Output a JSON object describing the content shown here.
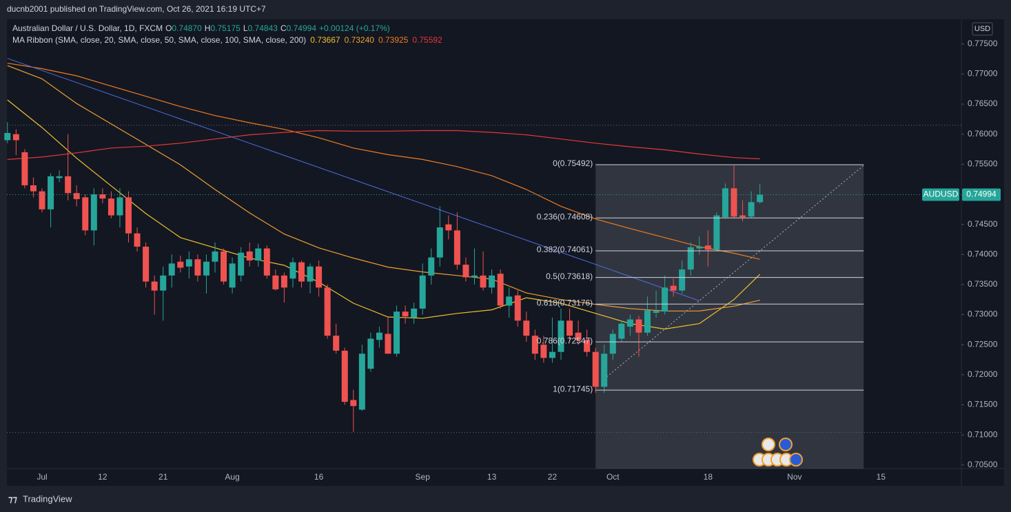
{
  "header": "ducnb2001 published on TradingView.com, Oct 26, 2021 16:19 UTC+7",
  "footer": "TradingView",
  "chart_data": {
    "type": "candlestick",
    "symbol": "Australian Dollar / U.S. Dollar, 1D, FXCM",
    "ohlc_legend": [
      {
        "key": "O",
        "value": 0.7487,
        "label": "0.74870"
      },
      {
        "key": "H",
        "value": 0.75175,
        "label": "0.75175"
      },
      {
        "key": "L",
        "value": 0.74843,
        "label": "0.74843"
      },
      {
        "key": "C",
        "value": 0.74994,
        "label": "0.74994"
      }
    ],
    "change": "+0.00124 (+0.17%)",
    "ma_legend": "MA Ribbon (SMA, close, 20, SMA, close, 50, SMA, close, 100, SMA, close, 200)",
    "currency": "USD",
    "price_tag": {
      "symbol": "AUDUSD",
      "value": 0.74994,
      "label": "0.74994"
    },
    "categories": [
      null,
      null,
      null,
      null,
      "Jul",
      null,
      null,
      null,
      null,
      null,
      null,
      "12",
      null,
      null,
      null,
      null,
      null,
      null,
      "21",
      null,
      null,
      null,
      null,
      null,
      null,
      null,
      "Aug",
      null,
      null,
      null,
      null,
      null,
      null,
      null,
      null,
      null,
      "16",
      null,
      null,
      null,
      null,
      null,
      null,
      null,
      null,
      null,
      null,
      null,
      "Sep",
      null,
      null,
      null,
      null,
      null,
      null,
      null,
      "13",
      null,
      null,
      null,
      null,
      null,
      null,
      "22",
      null,
      null,
      null,
      null,
      null,
      null,
      "Oct",
      null,
      null,
      null,
      null,
      null,
      null,
      null,
      null,
      null,
      null,
      "18",
      null,
      null,
      null,
      null,
      null,
      null,
      null,
      null,
      null,
      "Nov",
      null,
      null,
      null,
      null,
      null,
      null,
      null,
      null,
      null,
      "15",
      null,
      null,
      null,
      null,
      null,
      null,
      null,
      null,
      null
    ],
    "open": [
      0.759,
      0.76,
      0.757,
      0.7515,
      0.7505,
      0.7475,
      0.7527,
      0.753,
      0.7502,
      0.7495,
      0.744,
      0.75,
      0.7493,
      0.7465,
      0.7495,
      0.7435,
      0.7413,
      0.7355,
      0.734,
      0.7365,
      0.7388,
      0.738,
      0.7392,
      0.7365,
      0.7388,
      0.7405,
      0.7345,
      0.7365,
      0.7405,
      0.739,
      0.741,
      0.7365,
      0.7365,
      0.736,
      0.7387,
      0.7355,
      0.738,
      0.7345,
      0.7265,
      0.724,
      0.7158,
      0.7142,
      0.721,
      0.7258,
      0.7268,
      0.7235,
      0.7305,
      0.7295,
      0.731,
      0.7365,
      0.7395,
      0.745,
      0.744,
      0.7383,
      0.7362,
      0.7365,
      0.7345,
      0.7368,
      0.7315,
      0.7332,
      0.729,
      0.7265,
      0.725,
      0.7228,
      0.7238,
      0.729,
      0.727,
      0.7258,
      0.7238,
      0.718,
      0.7235,
      0.726,
      0.728,
      0.7292,
      0.727,
      0.7303,
      0.7305,
      0.7348,
      0.734,
      0.7375,
      0.741,
      0.7415,
      0.7408,
      0.7462,
      0.751,
      0.7465,
      0.7463,
      0.7487,
      null,
      null,
      null,
      null,
      null,
      null,
      null,
      null,
      null,
      null,
      null,
      null,
      null,
      null,
      null,
      null,
      null,
      null,
      null,
      null,
      null,
      null,
      null
    ],
    "high": [
      0.762,
      0.7608,
      0.7575,
      0.7528,
      0.751,
      0.7535,
      0.754,
      0.76,
      0.7515,
      0.75,
      0.751,
      0.751,
      0.7505,
      0.751,
      0.7505,
      0.7445,
      0.742,
      0.7365,
      0.738,
      0.74,
      0.7398,
      0.7405,
      0.74,
      0.74,
      0.742,
      0.741,
      0.7395,
      0.7412,
      0.742,
      0.7418,
      0.7415,
      0.7375,
      0.737,
      0.7395,
      0.739,
      0.7385,
      0.739,
      0.735,
      0.7285,
      0.7245,
      0.7175,
      0.725,
      0.727,
      0.728,
      0.7295,
      0.7315,
      0.7315,
      0.732,
      0.7385,
      0.741,
      0.748,
      0.7465,
      0.747,
      0.7395,
      0.741,
      0.7405,
      0.7375,
      0.7375,
      0.7345,
      0.734,
      0.7305,
      0.7275,
      0.7265,
      0.7295,
      0.731,
      0.731,
      0.729,
      0.7275,
      0.7245,
      0.725,
      0.7275,
      0.729,
      0.73,
      0.7298,
      0.733,
      0.734,
      0.7365,
      0.736,
      0.739,
      0.742,
      0.743,
      0.744,
      0.747,
      0.7518,
      0.7548,
      0.749,
      0.7505,
      0.75175,
      null,
      null,
      null,
      null,
      null,
      null,
      null,
      null,
      null,
      null,
      null,
      null,
      null,
      null,
      null,
      null,
      null,
      null,
      null,
      null,
      null,
      null,
      null
    ],
    "low": [
      0.7585,
      0.7565,
      0.751,
      0.7495,
      0.747,
      0.7445,
      0.752,
      0.749,
      0.748,
      0.7432,
      0.7415,
      0.7485,
      0.746,
      0.7445,
      0.742,
      0.7405,
      0.7345,
      0.73,
      0.729,
      0.7345,
      0.737,
      0.736,
      0.7355,
      0.7335,
      0.737,
      0.735,
      0.7335,
      0.7355,
      0.738,
      0.738,
      0.736,
      0.734,
      0.732,
      0.7345,
      0.7345,
      0.7335,
      0.733,
      0.726,
      0.7235,
      0.715,
      0.7105,
      0.714,
      0.7205,
      0.7245,
      0.7235,
      0.723,
      0.7285,
      0.7285,
      0.73,
      0.735,
      0.738,
      0.7425,
      0.7375,
      0.7355,
      0.735,
      0.734,
      0.7335,
      0.731,
      0.7295,
      0.728,
      0.7255,
      0.7225,
      0.722,
      0.722,
      0.7225,
      0.7255,
      0.725,
      0.723,
      0.717,
      0.717,
      0.7225,
      0.7255,
      0.7265,
      0.723,
      0.7265,
      0.7295,
      0.73,
      0.733,
      0.7335,
      0.7365,
      0.74,
      0.738,
      0.7405,
      0.746,
      0.746,
      0.7455,
      0.746,
      0.74843,
      null,
      null,
      null,
      null,
      null,
      null,
      null,
      null,
      null,
      null,
      null,
      null,
      null,
      null,
      null,
      null,
      null,
      null,
      null,
      null,
      null,
      null,
      null
    ],
    "close": [
      0.7602,
      0.759,
      0.7515,
      0.7505,
      0.7475,
      0.753,
      0.753,
      0.7502,
      0.7492,
      0.744,
      0.75,
      0.7493,
      0.7465,
      0.7495,
      0.7435,
      0.7413,
      0.7355,
      0.734,
      0.7365,
      0.7385,
      0.7378,
      0.7392,
      0.7365,
      0.7388,
      0.7405,
      0.7355,
      0.7385,
      0.7403,
      0.739,
      0.741,
      0.7365,
      0.7342,
      0.7345,
      0.7387,
      0.7355,
      0.738,
      0.7345,
      0.7265,
      0.724,
      0.7155,
      0.7148,
      0.7235,
      0.726,
      0.727,
      0.7235,
      0.7305,
      0.7297,
      0.731,
      0.7365,
      0.7395,
      0.7445,
      0.744,
      0.7383,
      0.7362,
      0.7365,
      0.7345,
      0.7365,
      0.7315,
      0.733,
      0.729,
      0.7265,
      0.7235,
      0.7228,
      0.7238,
      0.729,
      0.7265,
      0.7258,
      0.7238,
      0.718,
      0.7235,
      0.7268,
      0.7285,
      0.7292,
      0.727,
      0.7307,
      0.7306,
      0.7345,
      0.734,
      0.7375,
      0.7412,
      0.7413,
      0.7408,
      0.7465,
      0.751,
      0.7463,
      0.7462,
      0.7487,
      0.74994,
      null,
      null,
      null,
      null,
      null,
      null,
      null,
      null,
      null,
      null,
      null,
      null,
      null,
      null,
      null,
      null,
      null,
      null,
      null,
      null,
      null,
      null,
      null
    ],
    "up_color": "#26a69a",
    "down_color": "#ef5350",
    "ylim": [
      0.7044,
      0.7791
    ],
    "yticks": [
      {
        "value": 0.705,
        "label": "0.70500"
      },
      {
        "value": 0.71,
        "label": "0.71000"
      },
      {
        "value": 0.715,
        "label": "0.71500"
      },
      {
        "value": 0.72,
        "label": "0.72000"
      },
      {
        "value": 0.725,
        "label": "0.72500"
      },
      {
        "value": 0.73,
        "label": "0.73000"
      },
      {
        "value": 0.735,
        "label": "0.73500"
      },
      {
        "value": 0.74,
        "label": "0.74000"
      },
      {
        "value": 0.745,
        "label": "0.74500"
      },
      {
        "value": 0.755,
        "label": "0.75500"
      },
      {
        "value": 0.76,
        "label": "0.76000"
      },
      {
        "value": 0.765,
        "label": "0.76500"
      },
      {
        "value": 0.77,
        "label": "0.77000"
      },
      {
        "value": 0.775,
        "label": "0.77500"
      }
    ],
    "ma_x": [
      0,
      4,
      8,
      12,
      16,
      20,
      24,
      28,
      32,
      36,
      40,
      44,
      48,
      52,
      56,
      60,
      64,
      68,
      72,
      76,
      80,
      84,
      87
    ],
    "ma_series": [
      {
        "color": "#f2c12e",
        "values": [
          0.7657,
          0.7611,
          0.756,
          0.7514,
          0.7468,
          0.7428,
          0.7411,
          0.7394,
          0.7382,
          0.7354,
          0.7319,
          0.7296,
          0.7294,
          0.7302,
          0.7308,
          0.7328,
          0.7319,
          0.7302,
          0.7285,
          0.7276,
          0.7285,
          0.7325,
          0.7367
        ],
        "legend_value": {
          "value": 0.73667,
          "label": "0.73667"
        }
      },
      {
        "color": "#f0a030",
        "values": [
          0.7714,
          0.7692,
          0.7651,
          0.7617,
          0.7583,
          0.7549,
          0.7508,
          0.7469,
          0.7434,
          0.7411,
          0.7394,
          0.7379,
          0.7371,
          0.7365,
          0.7359,
          0.7336,
          0.7325,
          0.7317,
          0.731,
          0.7306,
          0.7306,
          0.7314,
          0.7324
        ],
        "legend_value": {
          "value": 0.7324,
          "label": "0.73240"
        }
      },
      {
        "color": "#f07c1e",
        "values": [
          0.7718,
          0.7709,
          0.7697,
          0.768,
          0.7663,
          0.7646,
          0.7631,
          0.7619,
          0.7608,
          0.7594,
          0.7577,
          0.7566,
          0.7558,
          0.7546,
          0.7531,
          0.7508,
          0.748,
          0.7459,
          0.7443,
          0.7428,
          0.7413,
          0.7402,
          0.7392
        ],
        "legend_value": {
          "value": 0.73925,
          "label": "0.73925"
        }
      },
      {
        "color": "#e53935",
        "values": [
          0.7558,
          0.7562,
          0.7569,
          0.7577,
          0.758,
          0.7585,
          0.7592,
          0.7599,
          0.7603,
          0.7606,
          0.7605,
          0.7605,
          0.7606,
          0.7606,
          0.7603,
          0.7599,
          0.7592,
          0.7585,
          0.7579,
          0.7574,
          0.7567,
          0.7561,
          0.7559
        ],
        "legend_value": {
          "value": 0.75592,
          "label": "0.75592"
        }
      }
    ],
    "trend_lines": [
      {
        "color": "#4e6ee0",
        "style": "solid",
        "x": [
          0,
          80
        ],
        "values": [
          0.7726,
          0.7323
        ]
      },
      {
        "color": "#b2b5be",
        "style": "dotted",
        "x": [
          69,
          99
        ],
        "values": [
          0.7193,
          0.7548
        ]
      }
    ],
    "fib": {
      "x": [
        68,
        99
      ],
      "levels": [
        {
          "value": 0.75492,
          "label": "0(0.75492)"
        },
        {
          "value": 0.74608,
          "label": "0.236(0.74608)"
        },
        {
          "value": 0.74061,
          "label": "0.382(0.74061)"
        },
        {
          "value": 0.73618,
          "label": "0.5(0.73618)"
        },
        {
          "value": 0.73176,
          "label": "0.618(0.73176)"
        },
        {
          "value": 0.72547,
          "label": "0.786(0.72547)"
        },
        {
          "value": 0.71745,
          "label": "1(0.71745)"
        }
      ]
    },
    "hlines": [
      0.7615,
      0.7104
    ],
    "grid": false
  }
}
